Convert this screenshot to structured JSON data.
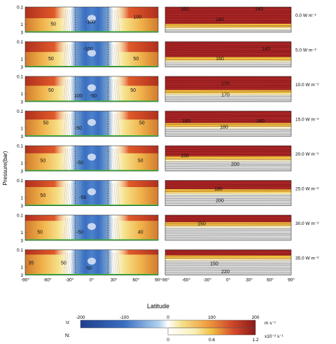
{
  "chart_data": {
    "type": "heatmap",
    "ylabel": "Pressure(bar)",
    "xlabel": "Latitude",
    "x_ticks": [
      "-90°",
      "-60°",
      "-30°",
      "0°",
      "30°",
      "60°",
      "90°"
    ],
    "y_ticks": [
      "0.1",
      "1",
      "3"
    ],
    "xlim": [
      -90,
      90
    ],
    "ylim_bar": [
      3,
      0.1
    ],
    "y_scale": "log",
    "rows": [
      {
        "forcing": "0.0 W m⁻²",
        "u_labels": [
          "50",
          "-100",
          "100"
        ],
        "n_labels": [
          "160",
          "140",
          "140"
        ]
      },
      {
        "forcing": "5.0 W m⁻²",
        "u_labels": [
          "-100",
          "50",
          "50"
        ],
        "n_labels": [
          "160",
          "140"
        ]
      },
      {
        "forcing": "10.0 W m⁻²",
        "u_labels": [
          "50",
          "100",
          "-50",
          "50"
        ],
        "n_labels": [
          "170",
          "170"
        ]
      },
      {
        "forcing": "15.0 W m⁻²",
        "u_labels": [
          "50",
          "-50",
          "50"
        ],
        "n_labels": [
          "180",
          "180",
          "180"
        ]
      },
      {
        "forcing": "20.0 W m⁻²",
        "u_labels": [
          "50",
          "-50",
          "50"
        ],
        "n_labels": [
          "150",
          "200"
        ]
      },
      {
        "forcing": "25.0 W m⁻²",
        "u_labels": [
          "50",
          "-50"
        ],
        "n_labels": [
          "180",
          "200"
        ]
      },
      {
        "forcing": "30.0 W m⁻²",
        "u_labels": [
          "50",
          "-50",
          "40"
        ],
        "n_labels": [
          "150"
        ]
      },
      {
        "forcing": "35.0 W m⁻²",
        "u_labels": [
          "35",
          "50",
          "-50"
        ],
        "n_labels": [
          "150",
          "220"
        ]
      }
    ],
    "colorbar_u": {
      "label": "u:",
      "unit": "m s⁻¹",
      "ticks": [
        "-200",
        "-100",
        "0",
        "100",
        "200"
      ],
      "range": [
        -200,
        200
      ]
    },
    "colorbar_n": {
      "label": "N:",
      "unit": "x10⁻² s⁻¹",
      "ticks": [
        "0",
        "0.6",
        "1.2"
      ],
      "range": [
        0,
        1.2
      ]
    },
    "colors": {
      "strong_easterly": "#3a5ca8",
      "easterly": "#7fa8d8",
      "calm": "#ffffff",
      "westerly": "#f2c640",
      "strong_westerly": "#c83a28",
      "jet_core": "#8a1a1a",
      "stable_layer": "#a82424",
      "grey_contours": "#9a9a9a",
      "bottom_line": "#3fbf3f"
    }
  }
}
